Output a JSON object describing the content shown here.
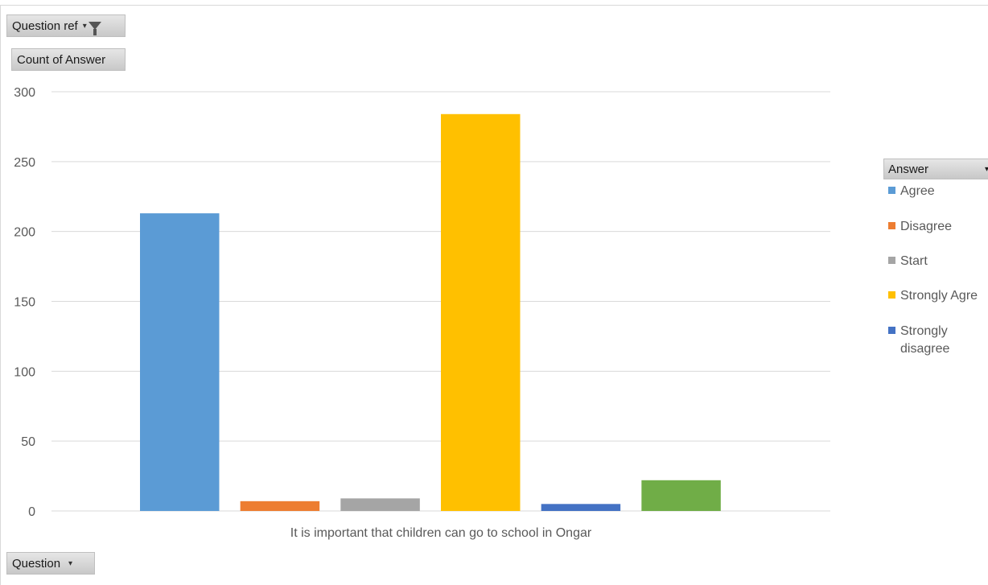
{
  "filter_button": {
    "label": "Question ref"
  },
  "value_button": {
    "label": "Count of Answer"
  },
  "axis_button": {
    "label": "Question"
  },
  "legend": {
    "title": "Answer",
    "items": [
      {
        "label": "Agree",
        "color": "#5b9bd5"
      },
      {
        "label": "Disagree",
        "color": "#ed7d31"
      },
      {
        "label": "Start",
        "color": "#a5a5a5"
      },
      {
        "label": "Strongly Agre",
        "color": "#ffc000"
      },
      {
        "label": "Strongly\ndisagree",
        "color": "#4472c4"
      }
    ]
  },
  "chart_data": {
    "type": "bar",
    "categories": [
      "It is important that children can go to school in Ongar"
    ],
    "series": [
      {
        "name": "Agree",
        "color": "#5b9bd5",
        "values": [
          213
        ]
      },
      {
        "name": "Disagree",
        "color": "#ed7d31",
        "values": [
          7
        ]
      },
      {
        "name": "Start",
        "color": "#a5a5a5",
        "values": [
          9
        ]
      },
      {
        "name": "Strongly Agre",
        "color": "#ffc000",
        "values": [
          284
        ]
      },
      {
        "name": "Strongly disagree",
        "color": "#4472c4",
        "values": [
          5
        ]
      },
      {
        "color": "#70ad47",
        "values": [
          22
        ]
      }
    ],
    "ylim": [
      0,
      300
    ],
    "yticks": [
      "0",
      "50",
      "100",
      "150",
      "200",
      "250",
      "300"
    ],
    "grid": true,
    "legend_position": "right"
  }
}
